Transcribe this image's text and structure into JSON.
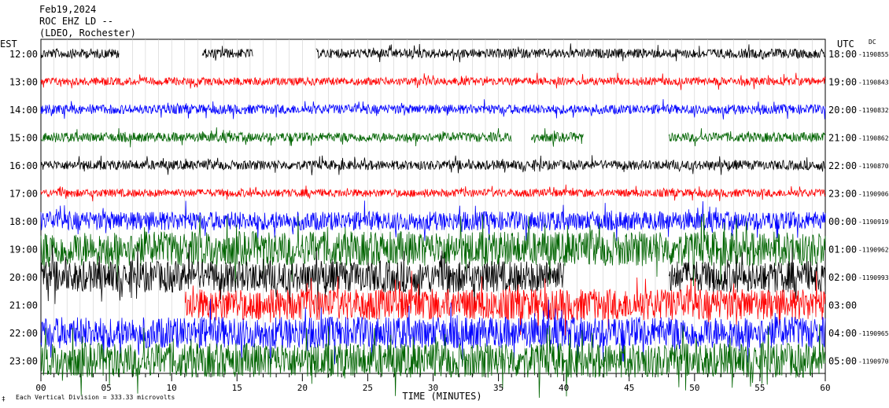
{
  "header": {
    "date": "Feb19,2024",
    "station": "ROC EHZ LD --",
    "network": "(LDEO, Rochester)"
  },
  "left_axis_title": "EST",
  "right_axis_title": "UTC",
  "dc_title": "DC",
  "footer": {
    "division_note": "Each Vertical Division =  333.33 microvolts",
    "corner_mark": "‡"
  },
  "chart_data": {
    "type": "line",
    "title": "",
    "xlabel": "TIME (MINUTES)",
    "ylabel": "",
    "xlim": [
      0,
      60
    ],
    "x_ticks": [
      "00",
      "05",
      "10",
      "15",
      "20",
      "25",
      "30",
      "35",
      "40",
      "45",
      "50",
      "55",
      "60"
    ],
    "colors": {
      "black": "#000000",
      "red": "#ff0000",
      "blue": "#0000ff",
      "green": "#006400"
    },
    "rows": [
      {
        "est": "12:00",
        "utc": "18:00",
        "dc": "-1190855",
        "color": "#000000",
        "amp": 6,
        "gaps": [
          [
            6,
            12.3
          ],
          [
            16.2,
            21
          ]
        ]
      },
      {
        "est": "13:00",
        "utc": "19:00",
        "dc": "-1190843",
        "color": "#ff0000",
        "amp": 5,
        "gaps": []
      },
      {
        "est": "14:00",
        "utc": "20:00",
        "dc": "-1190832",
        "color": "#0000ff",
        "amp": 6,
        "gaps": []
      },
      {
        "est": "15:00",
        "utc": "21:00",
        "dc": "-1190862",
        "color": "#006400",
        "amp": 6,
        "gaps": [
          [
            36,
            37.5
          ],
          [
            41.5,
            48
          ]
        ]
      },
      {
        "est": "16:00",
        "utc": "22:00",
        "dc": "-1190870",
        "color": "#000000",
        "amp": 6,
        "gaps": []
      },
      {
        "est": "17:00",
        "utc": "23:00",
        "dc": "-1190906",
        "color": "#ff0000",
        "amp": 5,
        "gaps": []
      },
      {
        "est": "18:00",
        "utc": "00:00",
        "dc": "-1190919",
        "color": "#0000ff",
        "amp": 12,
        "gaps": []
      },
      {
        "est": "19:00",
        "utc": "01:00",
        "dc": "-1190962",
        "color": "#006400",
        "amp": 22,
        "gaps": []
      },
      {
        "est": "20:00",
        "utc": "02:00",
        "dc": "-1190993",
        "color": "#000000",
        "amp": 20,
        "gaps": [
          [
            40,
            48
          ]
        ]
      },
      {
        "est": "21:00",
        "utc": "03:00",
        "dc": "",
        "color": "#ff0000",
        "amp": 20,
        "gaps": [
          [
            0,
            11
          ]
        ]
      },
      {
        "est": "22:00",
        "utc": "04:00",
        "dc": "-1190965",
        "color": "#0000ff",
        "amp": 20,
        "gaps": []
      },
      {
        "est": "23:00",
        "utc": "05:00",
        "dc": "-1190970",
        "color": "#006400",
        "amp": 22,
        "gaps": []
      }
    ]
  }
}
